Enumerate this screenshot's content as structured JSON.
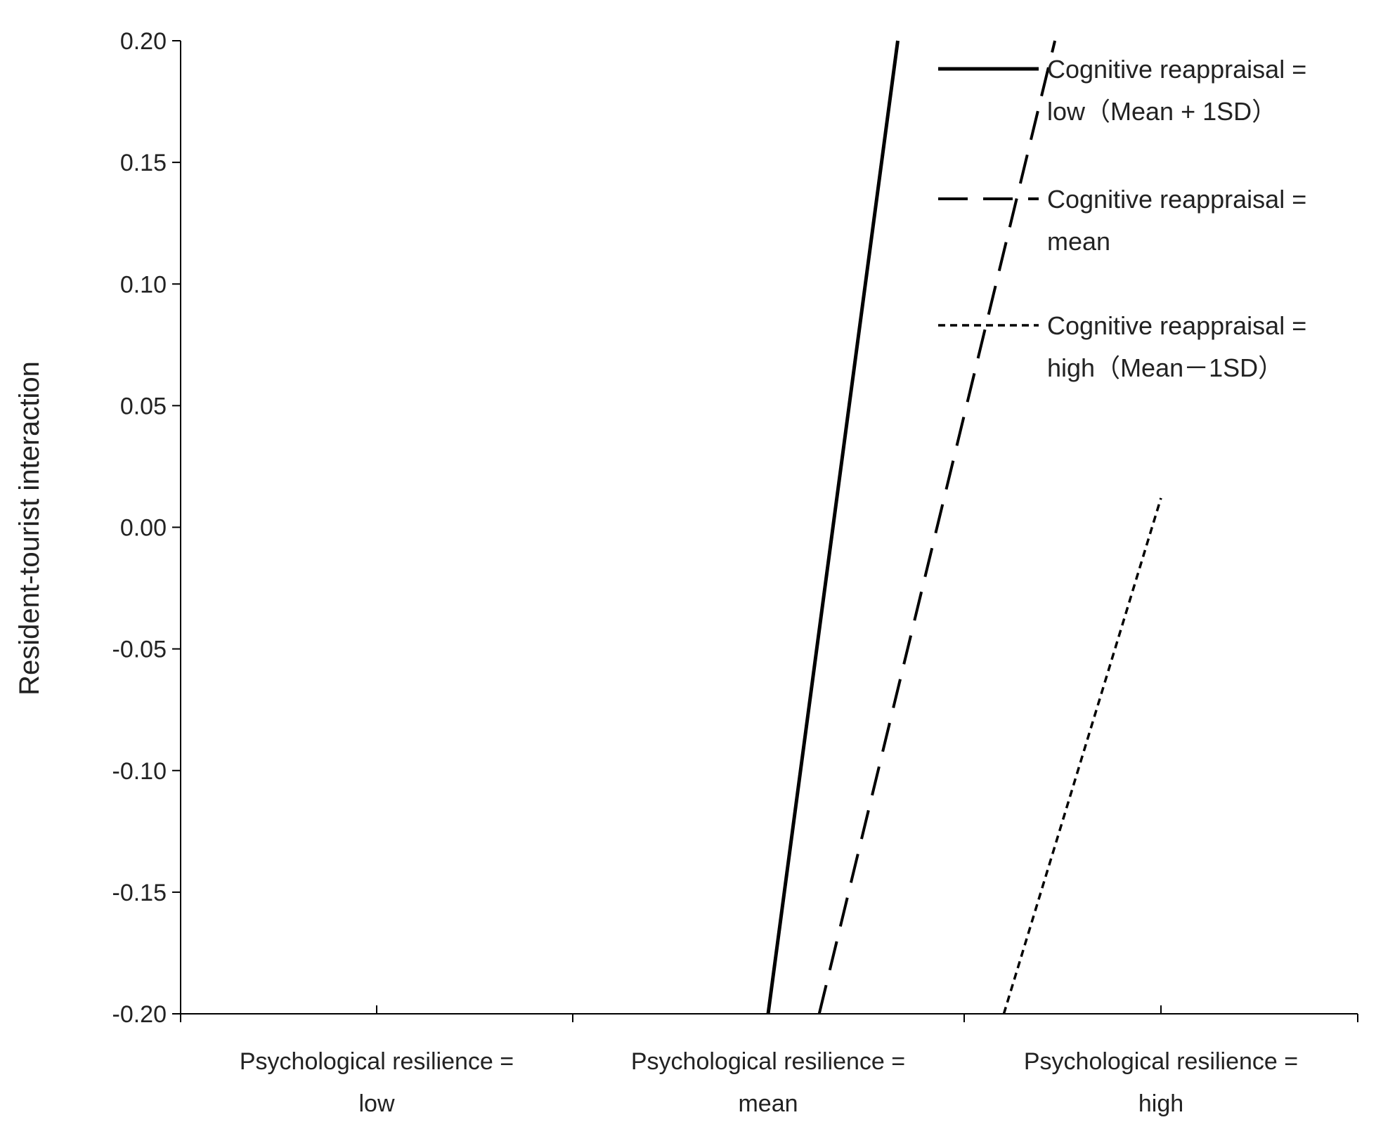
{
  "chart_data": {
    "type": "line",
    "title": "",
    "xlabel": "",
    "ylabel": "Resident-tourist interaction",
    "ylim": [
      -0.2,
      0.2
    ],
    "yticks": [
      0.2,
      0.15,
      0.1,
      0.05,
      0.0,
      -0.05,
      -0.1,
      -0.15,
      -0.2
    ],
    "ytick_labels": [
      "0.20",
      "0.15",
      "0.10",
      "0.05",
      "0.00",
      "-0.05",
      "-0.10",
      "-0.15",
      "-0.20"
    ],
    "categories": [
      [
        "Psychological resilience =",
        "low"
      ],
      [
        "Psychological resilience =",
        "mean"
      ],
      [
        "Psychological resilience =",
        "high"
      ]
    ],
    "grid": false,
    "legend_position": "top-right",
    "series": [
      {
        "name_lines": [
          "Cognitive reappraisal =",
          "low（Mean + 1SD）"
        ],
        "style": "solid",
        "x": [
          1.0,
          1.33
        ],
        "y": [
          -0.2,
          0.2
        ]
      },
      {
        "name_lines": [
          "Cognitive reappraisal =",
          "mean"
        ],
        "style": "dashed",
        "x": [
          1.13,
          1.73
        ],
        "y": [
          -0.2,
          0.2
        ]
      },
      {
        "name_lines": [
          "Cognitive reappraisal =",
          "high（Mean－1SD）"
        ],
        "style": "dotted",
        "x": [
          1.6,
          2.0
        ],
        "y": [
          -0.2,
          0.012
        ]
      }
    ],
    "line_color": "#000000"
  }
}
